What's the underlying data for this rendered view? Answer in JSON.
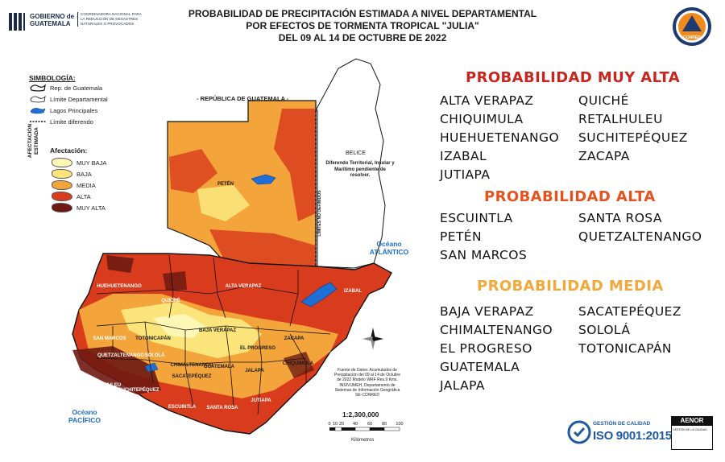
{
  "header": {
    "gov_name_line1": "GOBIERNO de",
    "gov_name_line2": "GUATEMALA",
    "gov_agency": "COORDINADORA NACIONAL PARA LA REDUCCIÓN DE DESASTRES NATURALES O PROVOCADOS",
    "title_line1": "PROBABILIDAD DE PRECIPITACIÓN ESTIMADA A NIVEL DEPARTAMENTAL",
    "title_line2": "POR EFECTOS DE TORMENTA TROPICAL \"JULIA\"",
    "title_line3": "DEL 09 AL  14  DE OCTUBRE DE 2022",
    "seal_text": "CONRED"
  },
  "legend": {
    "heading": "SIMBOLOGÍA:",
    "items": [
      {
        "label": "Rep. de Guatemala",
        "symbol": "country-outline-icon"
      },
      {
        "label": "Límite Departamental",
        "symbol": "department-outline-icon"
      },
      {
        "label": "Lagos Principales",
        "symbol": "lake-icon"
      },
      {
        "label": "Límite diferendo",
        "symbol": "dashed-line-icon"
      }
    ],
    "afectacion_heading": "Afectación:",
    "afectacion_side": "AFECTACIÓN ESTIMADA",
    "afectacion": [
      {
        "label": "MUY BAJA",
        "color": "#fdf7b5"
      },
      {
        "label": "BAJA",
        "color": "#fbe57a"
      },
      {
        "label": "MEDIA",
        "color": "#f3a53c"
      },
      {
        "label": "ALTA",
        "color": "#d93c1c"
      },
      {
        "label": "MUY ALTA",
        "color": "#6e1a12"
      }
    ]
  },
  "map": {
    "rep_label": "- REPÚBLICA DE GUATEMALA -",
    "belice": "BELICE",
    "dispute": "Diferendo Territorial, Insular y Marítimo pendiente de resolver.",
    "limits_text": "LÍMITES NO DEFINIDOS",
    "ocean_atlantic": "Océano ATLÁNTICO",
    "ocean_pacific": "Océano PACÍFICO",
    "lake_color": "#1f6fd6",
    "departments": {
      "peten": "PETÉN",
      "huehuetenango": "HUEHUETENANGO",
      "quiche": "QUICHÉ",
      "alta_verapaz": "ALTA VERAPAZ",
      "izabal": "IZABAL",
      "baja_verapaz": "BAJA VERAPAZ",
      "san_marcos": "SAN MARCOS",
      "totonicapan": "TOTONICAPÁN",
      "quetzaltenango": "QUETZALTENANGO",
      "solola": "SOLOLÁ",
      "chimaltenango": "CHIMALTENANGO",
      "el_progreso": "EL PROGRESO",
      "zacapa": "ZACAPA",
      "guatemala": "GUATEMALA",
      "jalapa": "JALAPA",
      "chiquimula": "CHIQUIMULA",
      "sacatepequez": "SACATEPÉQUEZ",
      "retalhuleu": "RETALHULEU",
      "suchitepequez": "SUCHITEPÉQUEZ",
      "escuintla": "ESCUINTLA",
      "santa_rosa": "SANTA ROSA",
      "jutiapa": "JUTIAPA"
    },
    "source": "Fuente de Datos: Acumulados de Precipitación del 09 al 14 de Octubre de 2022 Modelo WRF Res.9 Kms. INSIVUMEH, Departamento de Sistemas de Información Geográfica SE-CONRED",
    "scale": "1:2,300,000",
    "scale_ticks": [
      "0",
      "10",
      "20",
      "40",
      "60",
      "80",
      "100"
    ],
    "scale_unit": "Kilómetros",
    "compass_label": "N"
  },
  "categories": {
    "muy_alta": {
      "title": "PROBABILIDAD MUY ALTA",
      "color": "#c8261e",
      "col1": [
        "ALTA VERAPAZ",
        "CHIQUIMULA",
        "HUEHUETENANGO",
        "IZABAL",
        "JUTIAPA"
      ],
      "col2": [
        "QUICHÉ",
        "RETALHULEU",
        "SUCHITEPÉQUEZ",
        "ZACAPA"
      ]
    },
    "alta": {
      "title": "PROBABILIDAD ALTA",
      "color": "#e3531f",
      "col1": [
        "ESCUINTLA",
        "PETÉN",
        "SAN MARCOS"
      ],
      "col2": [
        "SANTA ROSA",
        "QUETZALTENANGO"
      ]
    },
    "media": {
      "title": "PROBABILIDAD MEDIA",
      "color": "#f2a93b",
      "col1": [
        "BAJA VERAPAZ",
        "CHIMALTENANGO",
        "EL PROGRESO",
        "GUATEMALA",
        "JALAPA"
      ],
      "col2": [
        "SACATEPÉQUEZ",
        "SOLOLÁ",
        "TOTONICAPÁN"
      ]
    }
  },
  "footer": {
    "iso_line1": "GESTIÓN DE CALIDAD",
    "iso_line2": "ISO 9001:2015",
    "aenor": "AENOR",
    "aenor_sub": "GESTIÓN DE LA CALIDAD"
  }
}
